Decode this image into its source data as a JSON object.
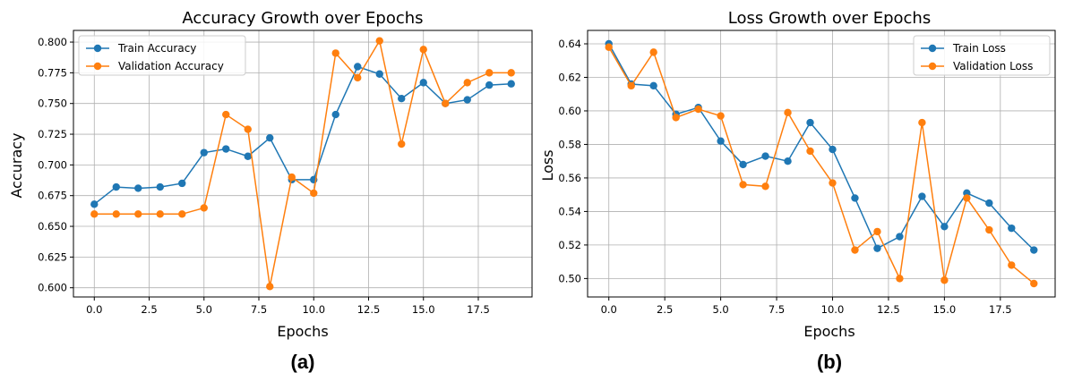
{
  "chart_data": [
    {
      "type": "line",
      "title": "Accuracy Growth over Epochs",
      "xlabel": "Epochs",
      "ylabel": "Accuracy",
      "panel_label": "(a)",
      "x": [
        0,
        1,
        2,
        3,
        4,
        5,
        6,
        7,
        8,
        9,
        10,
        11,
        12,
        13,
        14,
        15,
        16,
        17,
        18,
        19
      ],
      "xlim": [
        -0.95,
        19.95
      ],
      "ylim": [
        0.5925,
        0.8095
      ],
      "xticks": [
        0,
        2.5,
        5,
        7.5,
        10,
        12.5,
        15,
        17.5
      ],
      "xtick_labels": [
        "0.0",
        "2.5",
        "5.0",
        "7.5",
        "10.0",
        "12.5",
        "15.0",
        "17.5"
      ],
      "yticks": [
        0.6,
        0.625,
        0.65,
        0.675,
        0.7,
        0.725,
        0.75,
        0.775,
        0.8
      ],
      "ytick_labels": [
        "0.600",
        "0.625",
        "0.650",
        "0.675",
        "0.700",
        "0.725",
        "0.750",
        "0.775",
        "0.800"
      ],
      "grid": true,
      "legend": "top-left",
      "series": [
        {
          "name": "Train Accuracy",
          "color": "#1f77b4",
          "values": [
            0.668,
            0.682,
            0.681,
            0.682,
            0.685,
            0.71,
            0.713,
            0.707,
            0.722,
            0.688,
            0.688,
            0.741,
            0.78,
            0.774,
            0.754,
            0.767,
            0.75,
            0.753,
            0.765,
            0.766
          ]
        },
        {
          "name": "Validation Accuracy",
          "color": "#ff7f0e",
          "values": [
            0.66,
            0.66,
            0.66,
            0.66,
            0.66,
            0.665,
            0.741,
            0.729,
            0.601,
            0.69,
            0.677,
            0.791,
            0.771,
            0.801,
            0.717,
            0.794,
            0.75,
            0.767,
            0.775,
            0.775
          ]
        }
      ]
    },
    {
      "type": "line",
      "title": "Loss Growth over Epochs",
      "xlabel": "Epochs",
      "ylabel": "Loss",
      "panel_label": "(b)",
      "x": [
        0,
        1,
        2,
        3,
        4,
        5,
        6,
        7,
        8,
        9,
        10,
        11,
        12,
        13,
        14,
        15,
        16,
        17,
        18,
        19
      ],
      "xlim": [
        -0.95,
        19.95
      ],
      "ylim": [
        0.489,
        0.648
      ],
      "xticks": [
        0,
        2.5,
        5,
        7.5,
        10,
        12.5,
        15,
        17.5
      ],
      "xtick_labels": [
        "0.0",
        "2.5",
        "5.0",
        "7.5",
        "10.0",
        "12.5",
        "15.0",
        "17.5"
      ],
      "yticks": [
        0.5,
        0.52,
        0.54,
        0.56,
        0.58,
        0.6,
        0.62,
        0.64
      ],
      "ytick_labels": [
        "0.50",
        "0.52",
        "0.54",
        "0.56",
        "0.58",
        "0.60",
        "0.62",
        "0.64"
      ],
      "grid": true,
      "legend": "top-right",
      "series": [
        {
          "name": "Train Loss",
          "color": "#1f77b4",
          "values": [
            0.64,
            0.616,
            0.615,
            0.598,
            0.602,
            0.582,
            0.568,
            0.573,
            0.57,
            0.593,
            0.577,
            0.548,
            0.518,
            0.525,
            0.549,
            0.531,
            0.551,
            0.545,
            0.53,
            0.517
          ]
        },
        {
          "name": "Validation Loss",
          "color": "#ff7f0e",
          "values": [
            0.638,
            0.615,
            0.635,
            0.596,
            0.601,
            0.597,
            0.556,
            0.555,
            0.599,
            0.576,
            0.557,
            0.517,
            0.528,
            0.5,
            0.593,
            0.499,
            0.548,
            0.529,
            0.508,
            0.497
          ]
        }
      ]
    }
  ]
}
